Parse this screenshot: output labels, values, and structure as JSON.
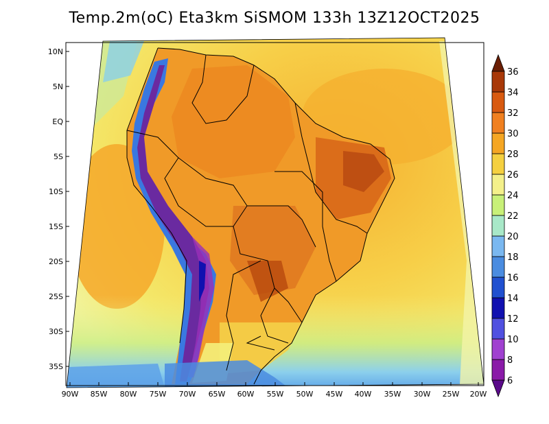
{
  "title": "Temp.2m(oC) Eta3km SiSMOM 133h 13Z12OCT2025",
  "colors": {
    "ocean_warm": "#f5a623",
    "ocean_mid": "#f7d04a",
    "ocean_cool": "#f4ea6d",
    "pale_yellow": "#f3f39a",
    "land_hot": "#e07a20",
    "land_very_hot": "#c04a10",
    "andes": "#6a2aa0",
    "cold_blue": "#4a8ce0"
  },
  "map": {
    "lat_labels": [
      "10N",
      "5N",
      "EQ",
      "5S",
      "10S",
      "15S",
      "20S",
      "25S",
      "30S",
      "35S"
    ],
    "lon_labels": [
      "90W",
      "85W",
      "80W",
      "75W",
      "70W",
      "65W",
      "60W",
      "55W",
      "50W",
      "45W",
      "40W",
      "35W",
      "30W",
      "25W",
      "20W"
    ]
  },
  "colorbar": {
    "levels": [
      "6",
      "8",
      "10",
      "12",
      "14",
      "16",
      "18",
      "20",
      "22",
      "24",
      "26",
      "28",
      "30",
      "32",
      "34",
      "36"
    ],
    "colors": [
      "#5a0a8a",
      "#8a1aa8",
      "#a040d0",
      "#5050e0",
      "#1010b0",
      "#2050d0",
      "#4a8ce0",
      "#7ab8f0",
      "#a8e8c8",
      "#c8f078",
      "#f4f08a",
      "#f5d040",
      "#f5a623",
      "#f08020",
      "#d85a10",
      "#a83808",
      "#6a1e04"
    ]
  }
}
